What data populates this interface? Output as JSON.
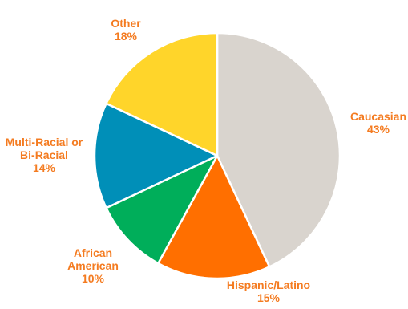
{
  "chart_data": {
    "type": "pie",
    "title": "",
    "start_angle_deg": 0,
    "direction": "clockwise",
    "label_color": "#F47B20",
    "slices": [
      {
        "label_lines": [
          "Caucasian"
        ],
        "value_text": "43%",
        "value": 43,
        "color": "#D9D4CE"
      },
      {
        "label_lines": [
          "Hispanic/Latino"
        ],
        "value_text": "15%",
        "value": 15,
        "color": "#FF6F00"
      },
      {
        "label_lines": [
          "African",
          "American"
        ],
        "value_text": "10%",
        "value": 10,
        "color": "#00AE5A"
      },
      {
        "label_lines": [
          "Multi-Racial or",
          "Bi-Racial"
        ],
        "value_text": "14%",
        "value": 14,
        "color": "#008FB8"
      },
      {
        "label_lines": [
          "Other"
        ],
        "value_text": "18%",
        "value": 18,
        "color": "#FFD52A"
      }
    ]
  }
}
